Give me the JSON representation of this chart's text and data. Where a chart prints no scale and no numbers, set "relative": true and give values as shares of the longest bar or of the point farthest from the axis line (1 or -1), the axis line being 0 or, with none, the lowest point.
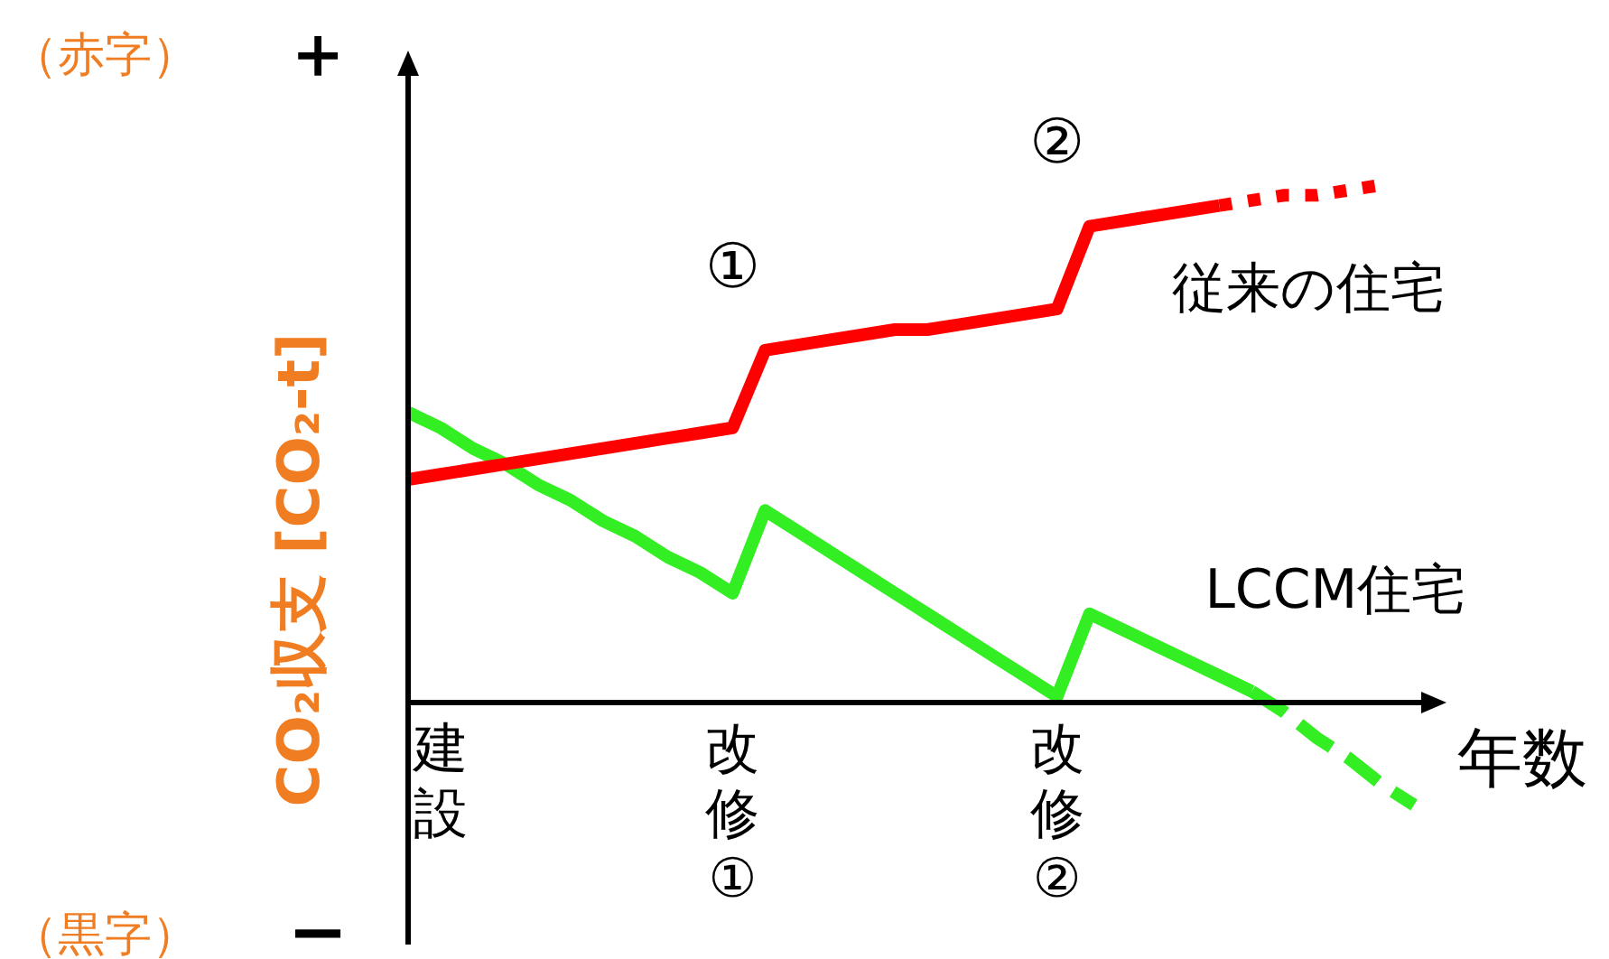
{
  "chart_data": {
    "type": "line",
    "relative": true,
    "xlabel": "年数",
    "ylabel": "CO₂収支 [CO₂-t]",
    "legend": false,
    "grid": false,
    "marker": "none",
    "tick_labels": "x",
    "categories": [
      null,
      "建設",
      null,
      null,
      null,
      null,
      null,
      null,
      null,
      null,
      "改修①",
      null,
      null,
      null,
      null,
      null,
      null,
      null,
      null,
      null,
      "改修②",
      null,
      null,
      null,
      null,
      null,
      null,
      null,
      null,
      null,
      null,
      null,
      null
    ],
    "series": [
      {
        "name": "従来の住宅",
        "color": "#ff0000",
        "line_style": "solid",
        "values": [
          0.43,
          0.44,
          0.45,
          0.46,
          0.47,
          0.48,
          0.49,
          0.5,
          0.51,
          0.52,
          0.53,
          0.68,
          0.69,
          0.7,
          0.71,
          0.72,
          0.72,
          0.73,
          0.74,
          0.75,
          0.76,
          0.92,
          0.93,
          0.94,
          0.95,
          0.96,
          null,
          null,
          null,
          null,
          null,
          null,
          null
        ]
      },
      {
        "color": "#ff0000",
        "line_style": "dotted",
        "values": [
          null,
          null,
          null,
          null,
          null,
          null,
          null,
          null,
          null,
          null,
          null,
          null,
          null,
          null,
          null,
          null,
          null,
          null,
          null,
          null,
          null,
          null,
          null,
          null,
          null,
          0.96,
          0.97,
          0.98,
          0.98,
          0.99,
          1,
          null,
          null
        ]
      },
      {
        "name": "LCCM住宅",
        "color": "#33ee22",
        "line_style": "solid",
        "values": [
          0.56,
          0.53,
          0.49,
          0.46,
          0.42,
          0.39,
          0.35,
          0.32,
          0.28,
          0.25,
          0.21,
          0.37,
          0.33,
          0.29,
          0.25,
          0.21,
          0.17,
          0.13,
          0.09,
          0.05,
          0.01,
          0.17,
          0.14,
          0.11,
          0.08,
          0.05,
          0.02,
          null,
          null,
          null,
          null,
          null,
          null
        ]
      },
      {
        "color": "#33ee22",
        "line_style": "dashed",
        "values": [
          null,
          null,
          null,
          null,
          null,
          null,
          null,
          null,
          null,
          null,
          null,
          null,
          null,
          null,
          null,
          null,
          null,
          null,
          null,
          null,
          null,
          null,
          null,
          null,
          null,
          null,
          0.02,
          -0.02,
          -0.07,
          -0.11,
          -0.16,
          -0.2,
          null
        ]
      }
    ],
    "annotations": [
      "（赤字）",
      "＋",
      "（黒字）",
      "−",
      "①",
      "②"
    ]
  }
}
